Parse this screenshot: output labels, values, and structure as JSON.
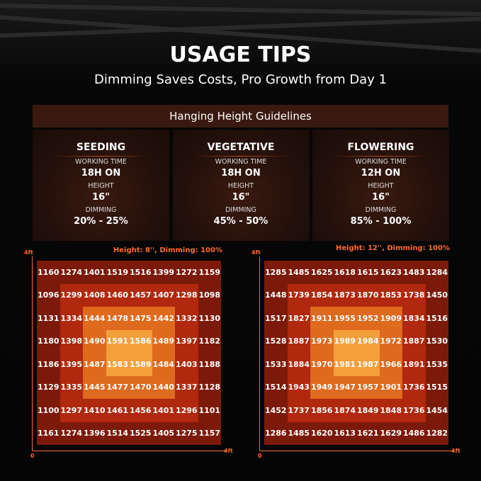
{
  "header": {
    "title": "USAGE TIPS",
    "subtitle": "Dimming Saves Costs, Pro Growth from Day 1"
  },
  "guidelines": {
    "title": "Hanging Height Guidelines",
    "stages": [
      {
        "name": "SEEDING",
        "working_time_label": "WORKING TIME",
        "working_time": "18H ON",
        "height_label": "HEIGHT",
        "height": "16\"",
        "dimming_label": "DIMMING",
        "dimming": "20% - 25%"
      },
      {
        "name": "VEGETATIVE",
        "working_time_label": "WORKING TIME",
        "working_time": "18H ON",
        "height_label": "HEIGHT",
        "height": "16\"",
        "dimming_label": "DIMMING",
        "dimming": "45% - 50%"
      },
      {
        "name": "FLOWERING",
        "working_time_label": "WORKING TIME",
        "working_time": "12H ON",
        "height_label": "HEIGHT",
        "height": "16\"",
        "dimming_label": "DIMMING",
        "dimming": "85% - 100%"
      }
    ]
  },
  "maps": [
    {
      "caption": "Height: 8'', Dimming: 100%",
      "y_top_label": "4ft",
      "origin_label": "0",
      "x_right_label": "4ft",
      "rows": [
        [
          1160,
          1274,
          1401,
          1519,
          1516,
          1399,
          1272,
          1159
        ],
        [
          1096,
          1299,
          1408,
          1460,
          1457,
          1407,
          1298,
          1098
        ],
        [
          1131,
          1334,
          1444,
          1478,
          1475,
          1442,
          1332,
          1130
        ],
        [
          1180,
          1398,
          1490,
          1591,
          1586,
          1489,
          1397,
          1182
        ],
        [
          1186,
          1395,
          1487,
          1583,
          1589,
          1484,
          1403,
          1188
        ],
        [
          1129,
          1335,
          1445,
          1477,
          1470,
          1440,
          1337,
          1128
        ],
        [
          1100,
          1297,
          1410,
          1461,
          1456,
          1401,
          1296,
          1101
        ],
        [
          1161,
          1274,
          1396,
          1514,
          1525,
          1405,
          1275,
          1157
        ]
      ]
    },
    {
      "caption": "Height: 12'', Dimming: 100%",
      "y_top_label": "4ft",
      "origin_label": "0",
      "x_right_label": "4ft",
      "rows": [
        [
          1285,
          1485,
          1625,
          1618,
          1615,
          1623,
          1483,
          1284
        ],
        [
          1448,
          1739,
          1854,
          1873,
          1870,
          1853,
          1738,
          1450
        ],
        [
          1517,
          1827,
          1911,
          1955,
          1952,
          1909,
          1834,
          1516
        ],
        [
          1528,
          1887,
          1973,
          1989,
          1984,
          1972,
          1887,
          1530
        ],
        [
          1533,
          1884,
          1970,
          1981,
          1987,
          1966,
          1891,
          1535
        ],
        [
          1514,
          1943,
          1949,
          1947,
          1957,
          1901,
          1736,
          1515
        ],
        [
          1452,
          1737,
          1856,
          1874,
          1849,
          1848,
          1736,
          1454
        ],
        [
          1286,
          1485,
          1620,
          1613,
          1621,
          1629,
          1486,
          1282
        ]
      ]
    }
  ]
}
